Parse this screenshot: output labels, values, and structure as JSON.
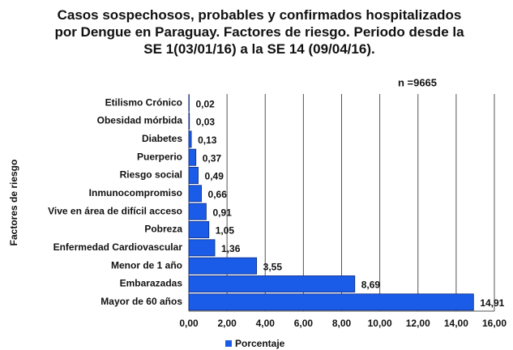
{
  "chart_data": {
    "type": "bar",
    "orientation": "horizontal",
    "title": "Casos sospechosos, probables y confirmados hospitalizados por Dengue en Paraguay. Factores de riesgo. Periodo desde la SE 1(03/01/16) a la SE 14 (09/04/16).",
    "annotation": "n =9665",
    "ylabel": "Factores de riesgo",
    "categories": [
      "Etilismo Crónico",
      "Obesidad mórbida",
      "Diabetes",
      "Puerperio",
      "Riesgo social",
      "Inmunocompromiso",
      "Vive en área de difícil acceso",
      "Pobreza",
      "Enfermedad Cardiovascular",
      "Menor de 1 año",
      "Embarazadas",
      "Mayor de 60 años"
    ],
    "series": [
      {
        "name": "Porcentaje",
        "color": "#1a5ce8",
        "values": [
          0.02,
          0.03,
          0.13,
          0.37,
          0.49,
          0.66,
          0.91,
          1.05,
          1.36,
          3.55,
          8.69,
          14.91
        ],
        "value_labels": [
          "0,02",
          "0,03",
          "0,13",
          "0,37",
          "0,49",
          "0,66",
          "0,91",
          "1,05",
          "1,36",
          "3,55",
          "8,69",
          "14,91"
        ]
      }
    ],
    "xlim": [
      0,
      16
    ],
    "xticks": [
      {
        "value": 0,
        "label": "0,00"
      },
      {
        "value": 2,
        "label": "2,00"
      },
      {
        "value": 4,
        "label": "4,00"
      },
      {
        "value": 6,
        "label": "6,00"
      },
      {
        "value": 8,
        "label": "8,00"
      },
      {
        "value": 10,
        "label": "10,00"
      },
      {
        "value": 12,
        "label": "12,00"
      },
      {
        "value": 14,
        "label": "14,00"
      },
      {
        "value": 16,
        "label": "16,00"
      }
    ],
    "grid": true,
    "legend": "bottom"
  }
}
